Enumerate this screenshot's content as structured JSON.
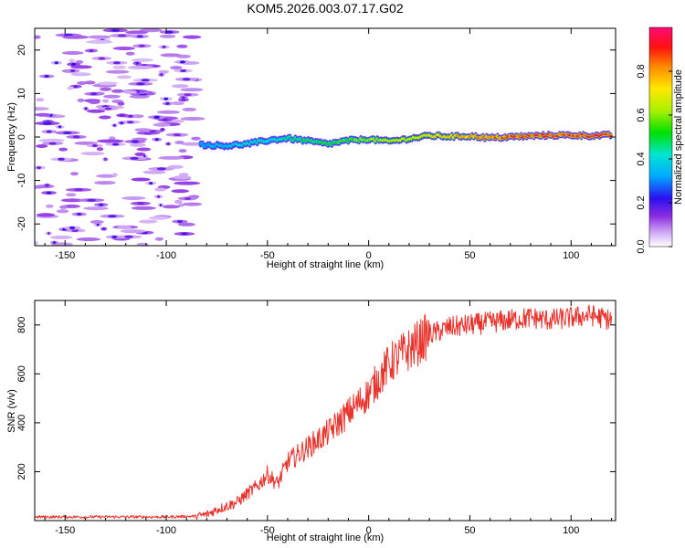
{
  "title": "KOM5.2026.003.07.17.G02",
  "chart_data": [
    {
      "type": "heatmap",
      "name": "spectrogram",
      "xlabel": "Height of straight line (km)",
      "ylabel": "Frequency (Hz)",
      "xlim": [
        -165,
        122
      ],
      "ylim": [
        -25,
        25
      ],
      "xticks": [
        -150,
        -100,
        -50,
        0,
        50,
        100
      ],
      "yticks": [
        -20,
        -10,
        0,
        10,
        20
      ],
      "colorbar": {
        "label": "Normalized spectral amplitude",
        "range": [
          0,
          1
        ],
        "ticks": [
          0.0,
          0.2,
          0.4,
          0.6,
          0.8
        ]
      },
      "noise_region_x": [
        -165,
        -85
      ],
      "signal_track": {
        "x": [
          -83,
          -70,
          -60,
          -50,
          -40,
          -30,
          -20,
          -10,
          0,
          10,
          20,
          30,
          40,
          50,
          60,
          70,
          80,
          90,
          100,
          110,
          120
        ],
        "freq_hz": [
          -1.8,
          -2.0,
          -1.6,
          -0.8,
          -0.3,
          -0.9,
          -1.6,
          -0.8,
          -0.5,
          -1.0,
          -0.4,
          0.3,
          0.1,
          0.2,
          -0.2,
          0.0,
          0.2,
          0.4,
          0.4,
          0.3,
          0.4
        ],
        "amplitude": [
          0.35,
          0.4,
          0.45,
          0.45,
          0.5,
          0.55,
          0.55,
          0.6,
          0.65,
          0.7,
          0.72,
          0.78,
          0.8,
          0.85,
          0.9,
          0.92,
          0.94,
          0.95,
          0.95,
          0.96,
          0.96
        ]
      }
    },
    {
      "type": "line",
      "name": "snr",
      "xlabel": "Height of straight line (km)",
      "ylabel": "SNR (v/v)",
      "xlim": [
        -165,
        122
      ],
      "ylim": [
        0,
        900
      ],
      "xticks": [
        -150,
        -100,
        -50,
        0,
        50,
        100
      ],
      "yticks": [
        200,
        400,
        600,
        800
      ],
      "color": "#e8322c",
      "x": [
        -165,
        -140,
        -120,
        -100,
        -85,
        -80,
        -75,
        -70,
        -65,
        -60,
        -55,
        -50,
        -45,
        -40,
        -30,
        -20,
        -10,
        0,
        10,
        20,
        30,
        40,
        50,
        60,
        70,
        80,
        90,
        100,
        110,
        120
      ],
      "y": [
        15,
        15,
        15,
        15,
        18,
        25,
        45,
        60,
        75,
        110,
        140,
        190,
        150,
        240,
        300,
        360,
        440,
        520,
        640,
        700,
        760,
        790,
        800,
        810,
        820,
        830,
        820,
        830,
        840,
        820
      ]
    }
  ]
}
